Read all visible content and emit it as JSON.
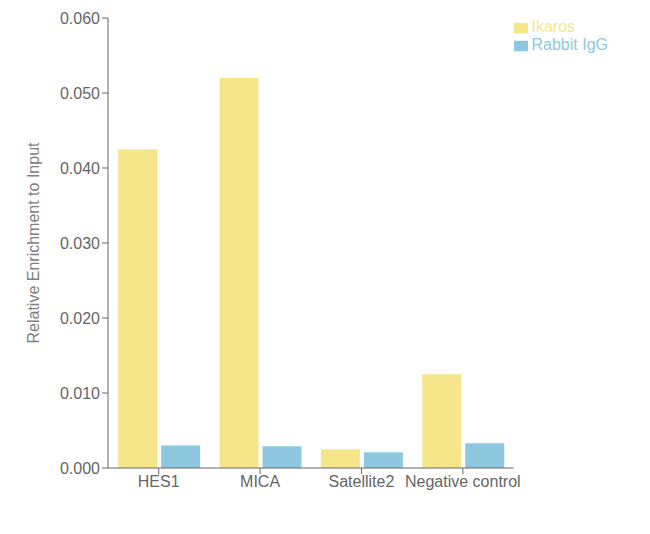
{
  "chart_data": {
    "type": "bar",
    "categories": [
      "HES1",
      "MICA",
      "Satellite2",
      "Negative control"
    ],
    "series": [
      {
        "name": "Ikaros",
        "color": "#F5E68A",
        "values": [
          0.0425,
          0.052,
          0.0025,
          0.0125
        ]
      },
      {
        "name": "Rabbit IgG",
        "color": "#8DC8E0",
        "values": [
          0.003,
          0.0029,
          0.0021,
          0.0033
        ]
      }
    ],
    "ylabel": "Relative Enrichment to Input",
    "ylim": [
      0.0,
      0.06
    ],
    "yticks": [
      {
        "value": 0.0,
        "label": "0.000"
      },
      {
        "value": 0.01,
        "label": "0.010"
      },
      {
        "value": 0.02,
        "label": "0.020"
      },
      {
        "value": 0.03,
        "label": "0.030"
      },
      {
        "value": 0.04,
        "label": "0.040"
      },
      {
        "value": 0.05,
        "label": "0.050"
      },
      {
        "value": 0.06,
        "label": "0.060"
      }
    ],
    "grid": false,
    "legend": "upper right"
  }
}
